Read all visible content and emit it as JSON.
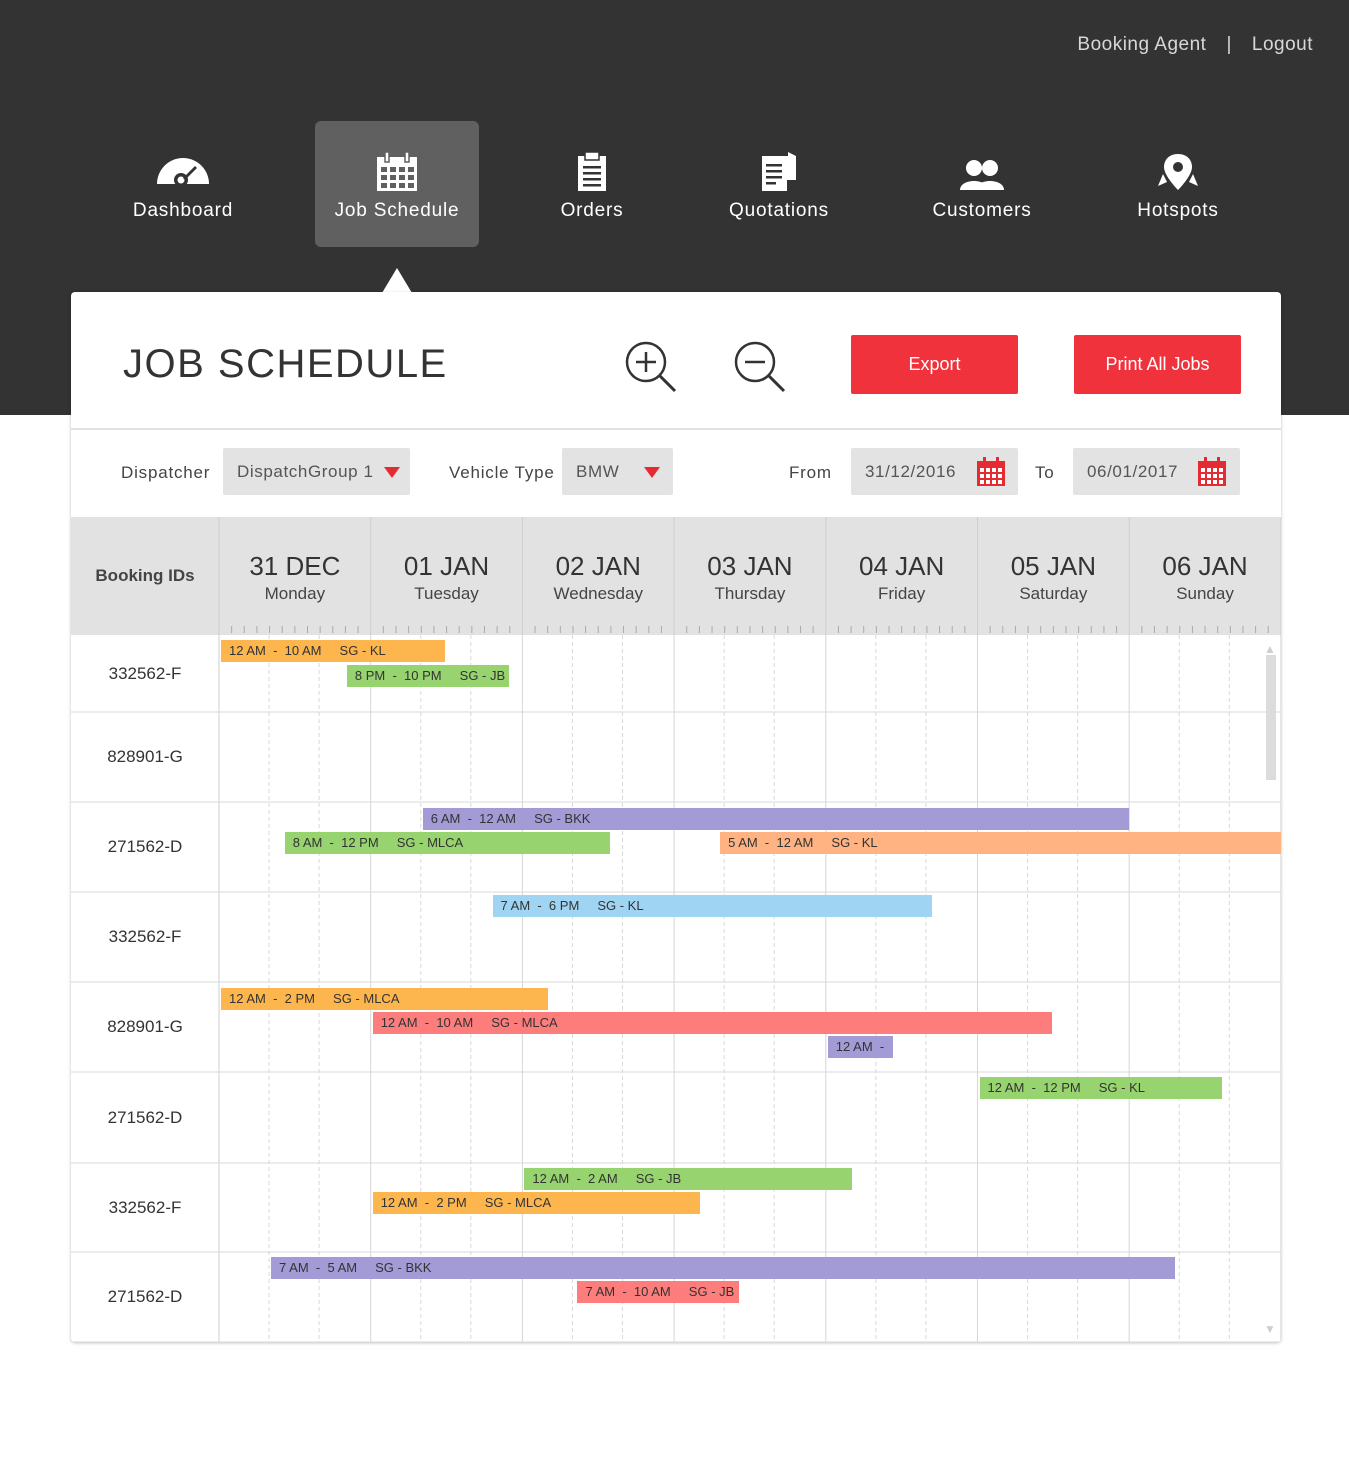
{
  "header": {
    "user_label": "Booking Agent",
    "separator": "|",
    "logout_label": "Logout"
  },
  "nav": {
    "items": [
      {
        "label": "Dashboard",
        "icon": "gauge-icon"
      },
      {
        "label": "Job Schedule",
        "icon": "calendar-icon",
        "active": true
      },
      {
        "label": "Orders",
        "icon": "clipboard-icon"
      },
      {
        "label": "Quotations",
        "icon": "document-icon"
      },
      {
        "label": "Customers",
        "icon": "users-icon"
      },
      {
        "label": "Hotspots",
        "icon": "map-pin-icon"
      }
    ]
  },
  "page": {
    "title": "JOB SCHEDULE",
    "export_label": "Export",
    "print_label": "Print All Jobs"
  },
  "filters": {
    "dispatcher_label": "Dispatcher",
    "dispatcher_value": "DispatchGroup 1",
    "vehicle_label": "Vehicle Type",
    "vehicle_value": "BMW",
    "from_label": "From",
    "from_value": "31/12/2016",
    "to_label": "To",
    "to_value": "06/01/2017"
  },
  "schedule": {
    "id_header": "Booking IDs",
    "days": [
      {
        "date": "31 DEC",
        "weekday": "Monday"
      },
      {
        "date": "01 JAN",
        "weekday": "Tuesday"
      },
      {
        "date": "02 JAN",
        "weekday": "Wednesday"
      },
      {
        "date": "03 JAN",
        "weekday": "Thursday"
      },
      {
        "date": "04 JAN",
        "weekday": "Friday"
      },
      {
        "date": "05 JAN",
        "weekday": "Saturday"
      },
      {
        "date": "06 JAN",
        "weekday": "Sunday"
      }
    ],
    "rows": [
      {
        "id": "332562-F",
        "jobs": [
          {
            "label": "12 AM  -  10 AM     SG - KL",
            "start": 0.0,
            "end": 1.49,
            "lane": 0,
            "color": "#fdb54e"
          },
          {
            "label": "8 PM  -  10 PM     SG - JB",
            "start": 0.83,
            "end": 1.91,
            "lane": 1,
            "color": "#97d36e"
          }
        ]
      },
      {
        "id": "828901-G",
        "jobs": []
      },
      {
        "id": "271562-D",
        "jobs": [
          {
            "label": "6 AM  -  12 AM     SG - BKK",
            "start": 1.33,
            "end": 6.0,
            "lane": 0,
            "color": "#a29bd6"
          },
          {
            "label": "8 AM  -  12 PM     SG - MLCA",
            "start": 0.42,
            "end": 2.58,
            "lane": 1,
            "color": "#97d36e"
          },
          {
            "label": "5 AM  -  12 AM     SG - KL",
            "start": 3.29,
            "end": 7.0,
            "lane": 1,
            "color": "#ffb382"
          }
        ]
      },
      {
        "id": "332562-F",
        "jobs": [
          {
            "label": "7 AM  -  6 PM     SG - KL",
            "start": 1.79,
            "end": 4.7,
            "lane": 0,
            "color": "#a0d4f3"
          }
        ]
      },
      {
        "id": "828901-G",
        "jobs": [
          {
            "label": "12 AM  -  2 PM     SG - MLCA",
            "start": 0.0,
            "end": 2.17,
            "lane": 0,
            "color": "#fdb54e"
          },
          {
            "label": "12 AM  -  10 AM     SG - MLCA",
            "start": 1.0,
            "end": 5.49,
            "lane": 1,
            "color": "#fc7d7b"
          },
          {
            "label": "12 AM  -",
            "start": 4.0,
            "end": 4.44,
            "lane": 2,
            "color": "#a29bd6"
          }
        ]
      },
      {
        "id": "271562-D",
        "jobs": [
          {
            "label": "12 AM  -  12 PM     SG - KL",
            "start": 5.0,
            "end": 6.61,
            "lane": 0,
            "color": "#97d36e"
          }
        ]
      },
      {
        "id": "332562-F",
        "jobs": [
          {
            "label": "12 AM  -  2 AM     SG - JB",
            "start": 2.0,
            "end": 4.17,
            "lane": 0,
            "color": "#97d36e"
          },
          {
            "label": "12 AM  -  2 PM     SG - MLCA",
            "start": 1.0,
            "end": 3.17,
            "lane": 1,
            "color": "#fdb54e"
          }
        ]
      },
      {
        "id": "271562-D",
        "jobs": [
          {
            "label": "7 AM  -  5 AM     SG - BKK",
            "start": 0.33,
            "end": 6.3,
            "lane": 0,
            "color": "#a29bd6"
          },
          {
            "label": "7 AM  -  10 AM     SG - JB",
            "start": 2.35,
            "end": 3.43,
            "lane": 1,
            "color": "#fc7d7b"
          }
        ]
      }
    ]
  },
  "colors": {
    "accent": "#f0323c",
    "header_bg": "#333333",
    "active_nav_bg": "#606060"
  }
}
